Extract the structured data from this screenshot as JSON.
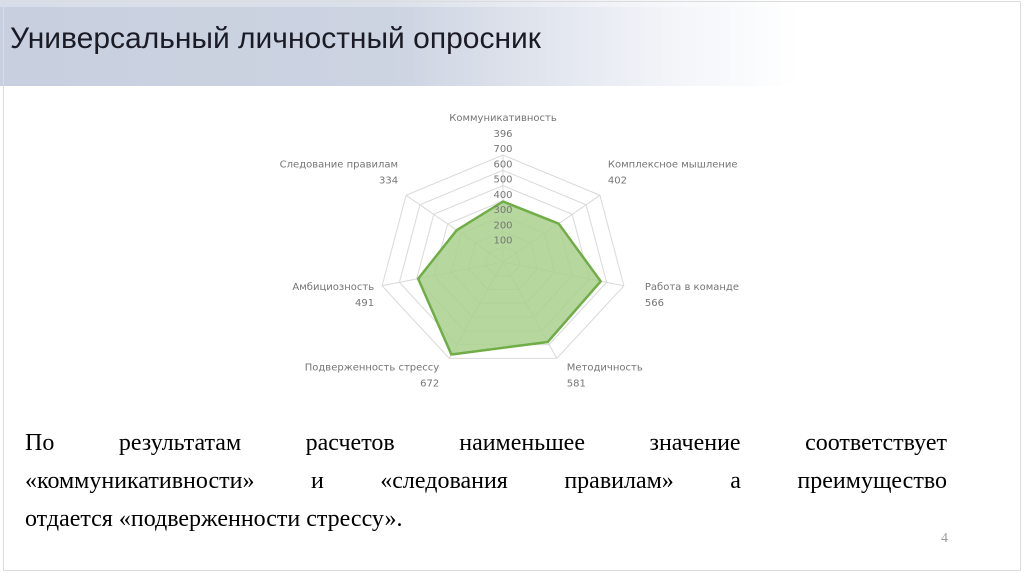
{
  "slide": {
    "title": "Универсальный личностный опросник",
    "page_number": "4",
    "summary": {
      "full_text": "По результатам расчетов наименьшее значение соответствует «коммуникативности» и «следования правилам» а преимущество отдается «подверженности стрессу».",
      "lines": [
        "По результатам расчетов наименьшее значение соответствует",
        "«коммуникативности» и «следования правилам» а преимущество",
        "отдается «подверженности стрессу»."
      ]
    }
  },
  "chart_data": {
    "type": "radar",
    "title": "",
    "categories": [
      "Коммуникативность",
      "Комплексное мышление",
      "Работа в команде",
      "Методичность",
      "Подверженность стрессу",
      "Амбициозность",
      "Следование правилам"
    ],
    "values": [
      396,
      402,
      566,
      581,
      672,
      491,
      334
    ],
    "axis_range": [
      0,
      700
    ],
    "tick_interval": 100,
    "tick_labels": [
      "700",
      "600",
      "500",
      "400",
      "300",
      "200",
      "100"
    ],
    "grid": true,
    "legend": "none",
    "colors": {
      "fill": "#a9d18e",
      "fill_opacity": 0.85,
      "stroke": "#70ad47",
      "grid": "#d9d9d9",
      "labels": "#757575"
    }
  },
  "theme": {
    "header_gradient_left": "#c8d0e0",
    "header_gradient_right": "#ffffff",
    "title_color": "#1b1b26",
    "page_number_color": "#9a9a9a"
  }
}
